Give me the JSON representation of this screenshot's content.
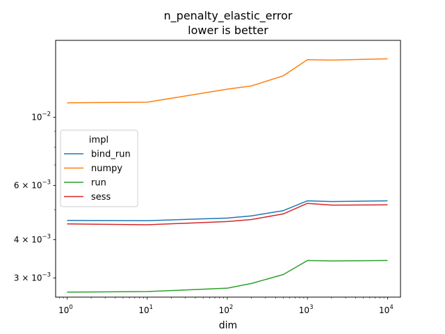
{
  "chart_data": {
    "type": "line",
    "title": "n_penalty_elastic_error",
    "subtitle": "lower is better",
    "xlabel": "dim",
    "ylabel": "",
    "xscale": "log",
    "yscale": "log",
    "xlim": [
      0.72,
      14500
    ],
    "ylim": [
      0.0026,
      0.0178
    ],
    "grid": false,
    "legend_title": "impl",
    "legend_loc": "center-left",
    "x": [
      1,
      10,
      100,
      200,
      500,
      1000,
      2000,
      10000
    ],
    "x_ticks": [
      {
        "value": 1,
        "base": "10",
        "exp": "0"
      },
      {
        "value": 10,
        "base": "10",
        "exp": "1"
      },
      {
        "value": 100,
        "base": "10",
        "exp": "2"
      },
      {
        "value": 1000,
        "base": "10",
        "exp": "3"
      },
      {
        "value": 10000,
        "base": "10",
        "exp": "4"
      }
    ],
    "y_ticks": [
      {
        "value": 0.003,
        "mant": "3 × 10",
        "exp": "−3"
      },
      {
        "value": 0.004,
        "mant": "4 × 10",
        "exp": "−3"
      },
      {
        "value": 0.006,
        "mant": "6 × 10",
        "exp": "−3"
      },
      {
        "value": 0.01,
        "mant": "10",
        "exp": "−2"
      }
    ],
    "series": [
      {
        "name": "bind_run",
        "color": "#1f77b4",
        "values": [
          0.00462,
          0.00461,
          0.0047,
          0.00478,
          0.00497,
          0.00535,
          0.00532,
          0.00535
        ]
      },
      {
        "name": "numpy",
        "color": "#ff7f0e",
        "values": [
          0.01115,
          0.0112,
          0.01235,
          0.01265,
          0.01365,
          0.0154,
          0.01535,
          0.0155
        ]
      },
      {
        "name": "run",
        "color": "#2ca02c",
        "values": [
          0.0027,
          0.00271,
          0.00278,
          0.00288,
          0.00308,
          0.00342,
          0.00341,
          0.00342
        ]
      },
      {
        "name": "sess",
        "color": "#d62728",
        "values": [
          0.0045,
          0.00447,
          0.00458,
          0.00465,
          0.00485,
          0.00525,
          0.00518,
          0.00519
        ]
      }
    ]
  }
}
